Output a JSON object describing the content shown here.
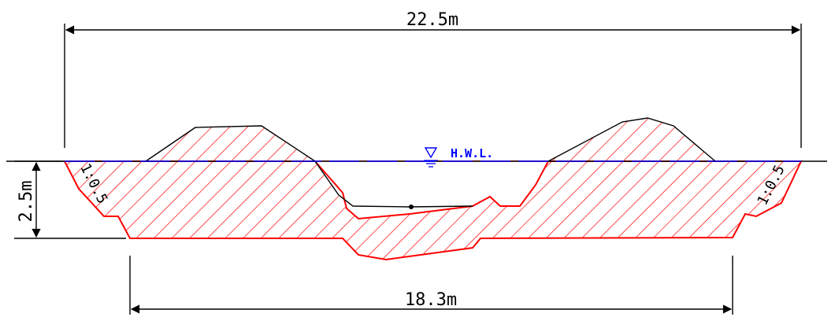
{
  "dimensions": {
    "top_width": "22.5m",
    "bottom_width": "18.3m",
    "depth": "2.5m"
  },
  "slopes": {
    "left": "1:0.5",
    "right": "1:0.5"
  },
  "water_level": {
    "label": "H.W.L."
  },
  "colors": {
    "dimension_lines": "#000000",
    "section_outline": "#ff0000",
    "hatch": "#ff0000",
    "water_level_line": "#0000ff",
    "terrain_line": "#000000"
  },
  "icons": {
    "water_level_marker": "inverted-triangle-icon"
  }
}
